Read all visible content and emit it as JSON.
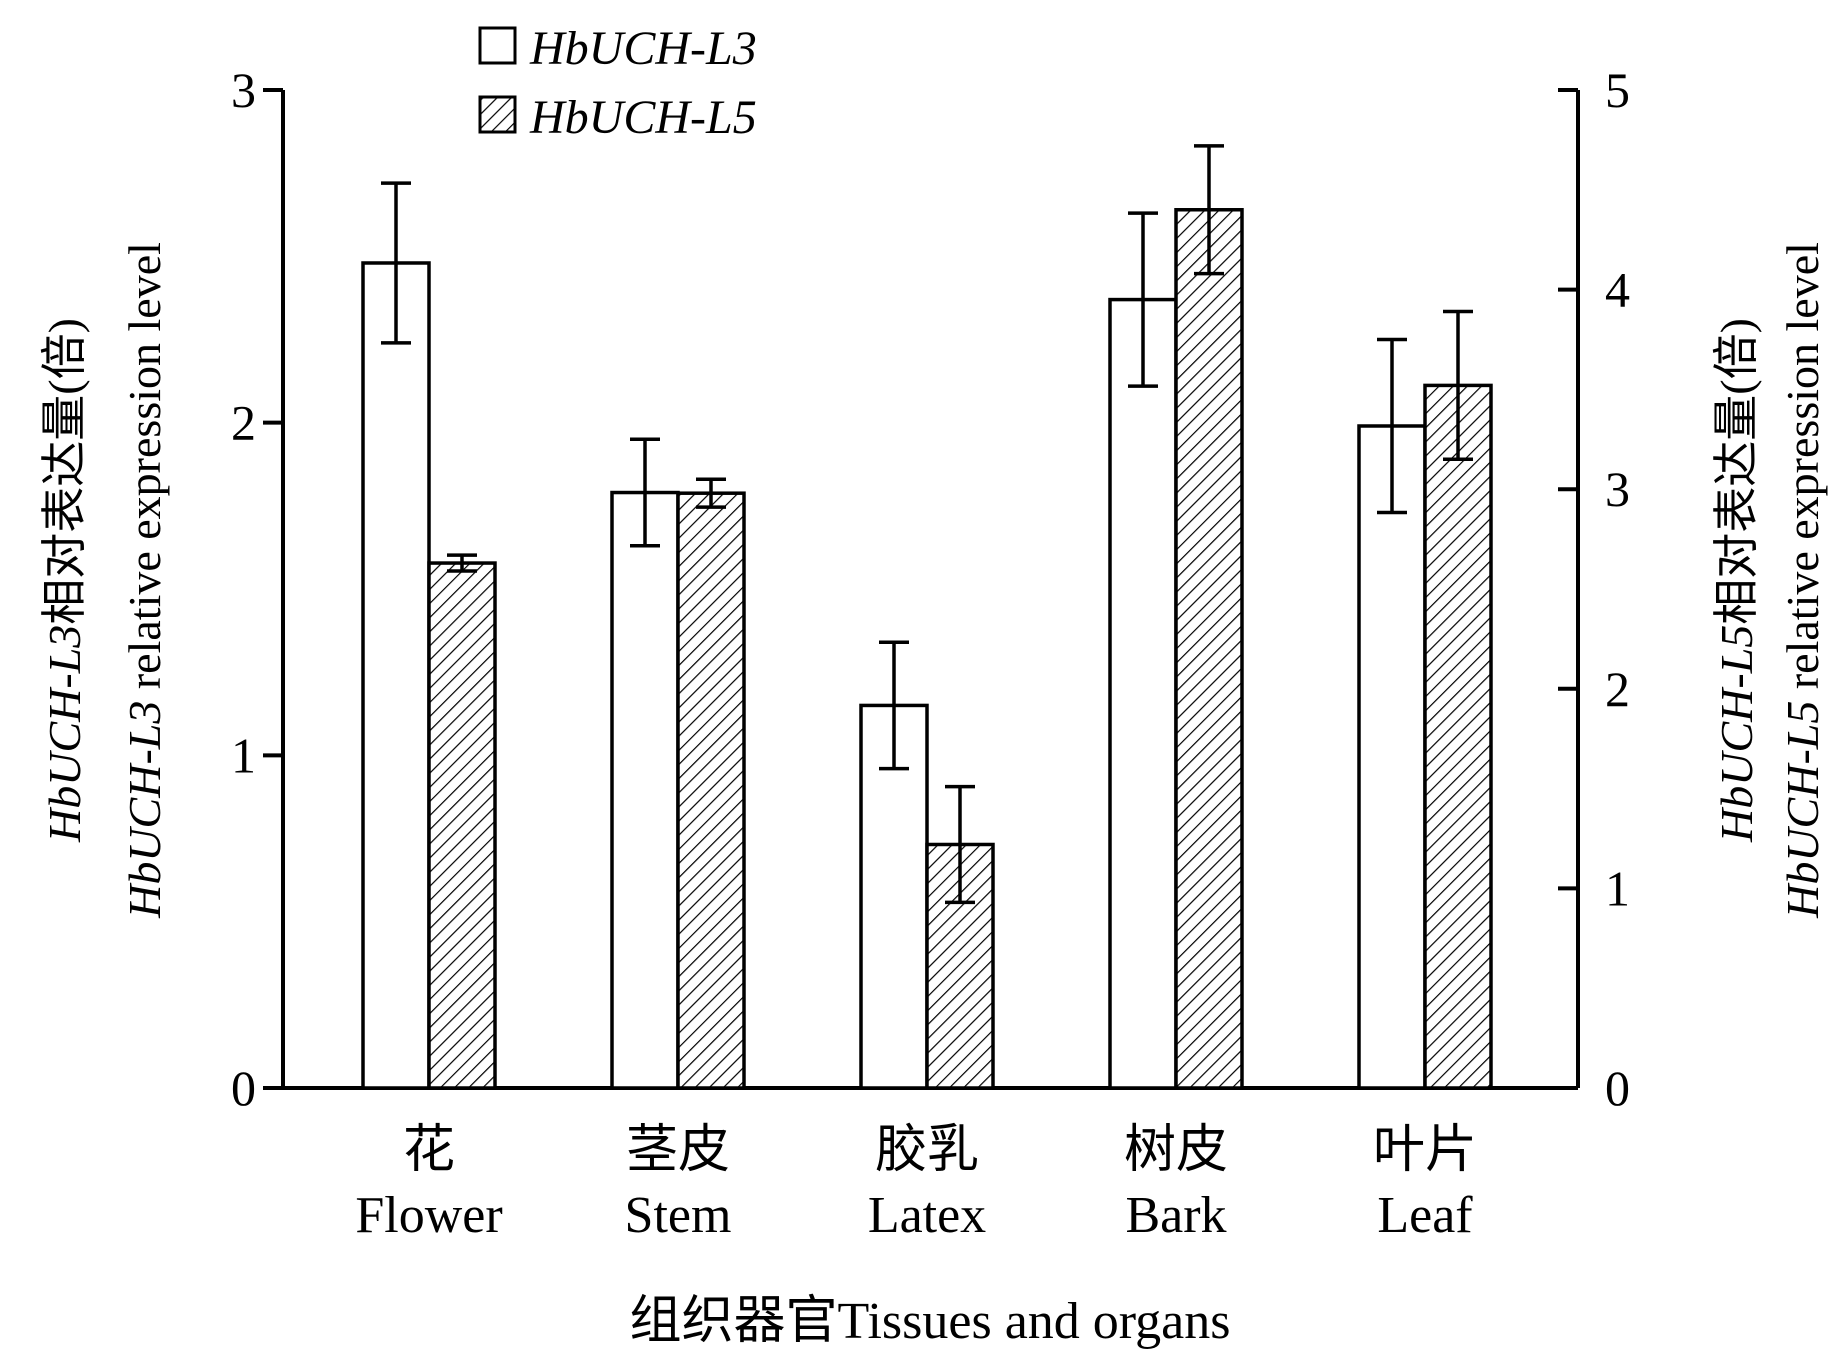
{
  "chart_data": {
    "type": "bar",
    "categories": [
      {
        "cn": "花",
        "en": "Flower"
      },
      {
        "cn": "茎皮",
        "en": "Stem"
      },
      {
        "cn": "胶乳",
        "en": "Latex"
      },
      {
        "cn": "树皮",
        "en": "Bark"
      },
      {
        "cn": "叶片",
        "en": "Leaf"
      }
    ],
    "series": [
      {
        "name": "HbUCH-L3",
        "axis": "left",
        "fill": "open",
        "values": [
          2.48,
          1.79,
          1.15,
          2.37,
          1.99
        ],
        "errors": [
          0.24,
          0.16,
          0.19,
          0.26,
          0.26
        ]
      },
      {
        "name": "HbUCH-L5",
        "axis": "right",
        "fill": "hatched",
        "values": [
          2.63,
          2.98,
          1.22,
          4.4,
          3.52
        ],
        "errors": [
          0.04,
          0.07,
          0.29,
          0.32,
          0.37
        ]
      }
    ],
    "left_axis": {
      "ylim": [
        0,
        3
      ],
      "ticks": [
        "0",
        "1",
        "2",
        "3"
      ],
      "label_gene": "HbUCH-L3",
      "label_cn_suffix": "相对表达量(倍)",
      "label_en_suffix": " relative expression level"
    },
    "right_axis": {
      "ylim": [
        0,
        5
      ],
      "ticks": [
        "0",
        "1",
        "2",
        "3",
        "4",
        "5"
      ],
      "label_gene": "HbUCH-L5",
      "label_cn_suffix": "相对表达量(倍)",
      "label_en_suffix": " relative expression level"
    },
    "xlabel": "组织器官Tissues and organs",
    "legend": {
      "position": "top-left",
      "entries": [
        "HbUCH-L3",
        "HbUCH-L5"
      ]
    }
  }
}
